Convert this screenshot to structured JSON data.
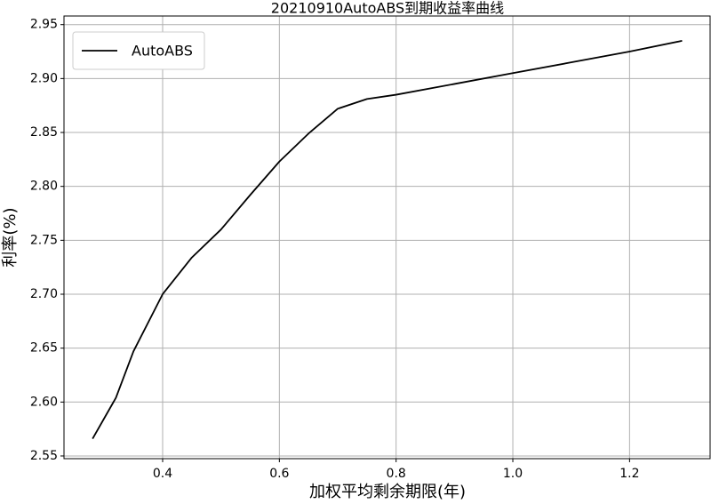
{
  "chart_data": {
    "type": "line",
    "title": "20210910AutoABS到期收益率曲线",
    "xlabel": "加权平均剩余期限(年)",
    "ylabel": "利率(%)",
    "x": [
      0.28,
      0.32,
      0.35,
      0.4,
      0.45,
      0.5,
      0.55,
      0.6,
      0.65,
      0.7,
      0.75,
      0.8,
      0.9,
      1.0,
      1.1,
      1.2,
      1.29
    ],
    "series": [
      {
        "name": "AutoABS",
        "color": "#000000",
        "values": [
          2.566,
          2.604,
          2.647,
          2.7,
          2.734,
          2.76,
          2.792,
          2.823,
          2.849,
          2.872,
          2.881,
          2.885,
          2.895,
          2.905,
          2.915,
          2.925,
          2.935
        ]
      }
    ],
    "xlim": [
      0.231,
      1.338
    ],
    "ylim": [
      2.5475,
      2.958
    ],
    "xticks": [
      0.4,
      0.6,
      0.8,
      {
        "value": 1.0,
        "label": "1.0"
      },
      1.2
    ],
    "yticks": [
      2.55,
      {
        "value": 2.6,
        "label": "2.60"
      },
      2.65,
      {
        "value": 2.7,
        "label": "2.70"
      },
      2.75,
      {
        "value": 2.8,
        "label": "2.80"
      },
      2.85,
      {
        "value": 2.9,
        "label": "2.90"
      },
      2.95
    ],
    "grid": true,
    "legend": "upper left"
  }
}
